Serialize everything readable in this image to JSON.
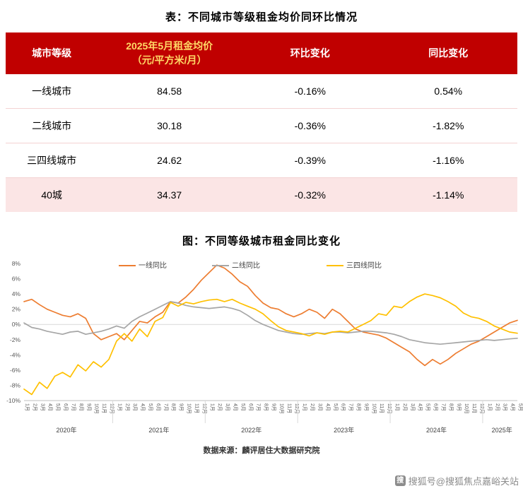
{
  "page": {
    "table_title": "表：不同城市等级租金均价同环比情况",
    "chart_title": "图：不同等级城市租金同比变化",
    "source": "数据来源：麟评居住大数据研究院",
    "watermark": "搜狐号@搜狐焦点嘉峪关站",
    "watermark_icon": "搜"
  },
  "colors": {
    "header_bg": "#C00000",
    "header_text": "#FFFFFF",
    "header_accent": "#FFD966",
    "highlight_row_bg": "#FBE5E5",
    "series_first_tier": "#ED7D31",
    "series_second_tier": "#A6A6A6",
    "series_lower_tier": "#FFC000"
  },
  "table": {
    "header_tier": "城市等级",
    "header_price_line1": "2025年5月租金均价",
    "header_price_line2": "（元/平方米/月）",
    "header_mom": "环比变化",
    "header_yoy": "同比变化",
    "rows": [
      {
        "tier": "一线城市",
        "price": "84.58",
        "mom": "-0.16%",
        "yoy": "0.54%"
      },
      {
        "tier": "二线城市",
        "price": "30.18",
        "mom": "-0.36%",
        "yoy": "-1.82%"
      },
      {
        "tier": "三四线城市",
        "price": "24.62",
        "mom": "-0.39%",
        "yoy": "-1.16%"
      },
      {
        "tier": "40城",
        "price": "34.37",
        "mom": "-0.32%",
        "yoy": "-1.14%"
      }
    ]
  },
  "chart_data": {
    "type": "line",
    "title": "图：不同等级城市租金同比变化",
    "ylim": [
      -10,
      8
    ],
    "ytick_step": 2,
    "grid": "zero-line-only",
    "legend_position": "top-center",
    "x_labels": [
      "1月",
      "2月",
      "3月",
      "4月",
      "5月",
      "6月",
      "7月",
      "8月",
      "9月",
      "10月",
      "11月",
      "12月",
      "1月",
      "2月",
      "3月",
      "4月",
      "5月",
      "6月",
      "7月",
      "8月",
      "9月",
      "10月",
      "11月",
      "12月",
      "1月",
      "2月",
      "3月",
      "4月",
      "5月",
      "6月",
      "7月",
      "8月",
      "9月",
      "10月",
      "11月",
      "12月",
      "1月",
      "2月",
      "3月",
      "4月",
      "5月",
      "6月",
      "7月",
      "8月",
      "9月",
      "10月",
      "11月",
      "12月",
      "1月",
      "2月",
      "3月",
      "4月",
      "5月",
      "6月",
      "7月",
      "8月",
      "9月",
      "10月",
      "11月",
      "12月",
      "1月",
      "2月",
      "3月",
      "4月",
      "5月"
    ],
    "year_separators": [
      11.5,
      23.5,
      35.5,
      47.5,
      59.5
    ],
    "year_labels": [
      {
        "label": "2020年",
        "center": 5.5
      },
      {
        "label": "2021年",
        "center": 17.5
      },
      {
        "label": "2022年",
        "center": 29.5
      },
      {
        "label": "2023年",
        "center": 41.5
      },
      {
        "label": "2024年",
        "center": 53.5
      },
      {
        "label": "2025年",
        "center": 62
      }
    ],
    "series": [
      {
        "name": "一线同比",
        "color": "#ED7D31",
        "values": [
          3.0,
          3.3,
          2.6,
          2.0,
          1.6,
          1.2,
          1.0,
          1.4,
          0.8,
          -1.2,
          -2.0,
          -1.6,
          -1.2,
          -2.0,
          -0.8,
          0.4,
          0.2,
          1.0,
          1.6,
          3.0,
          2.8,
          3.6,
          4.6,
          5.8,
          6.8,
          7.8,
          7.4,
          6.6,
          5.6,
          5.0,
          3.8,
          2.8,
          2.2,
          2.0,
          1.4,
          1.0,
          1.4,
          2.0,
          1.6,
          0.8,
          2.0,
          1.4,
          0.4,
          -0.6,
          -1.0,
          -1.2,
          -1.4,
          -1.8,
          -2.4,
          -3.0,
          -3.6,
          -4.6,
          -5.4,
          -4.6,
          -5.2,
          -4.6,
          -3.8,
          -3.2,
          -2.6,
          -2.2,
          -1.6,
          -1.0,
          -0.4,
          0.2,
          0.54
        ]
      },
      {
        "name": "二线同比",
        "color": "#A6A6A6",
        "values": [
          0.2,
          -0.4,
          -0.6,
          -0.9,
          -1.1,
          -1.3,
          -1.0,
          -0.9,
          -1.3,
          -1.1,
          -0.9,
          -0.6,
          -0.2,
          -0.5,
          0.4,
          1.0,
          1.5,
          2.0,
          2.5,
          3.0,
          2.8,
          2.5,
          2.3,
          2.2,
          2.1,
          2.2,
          2.3,
          2.1,
          1.8,
          1.2,
          0.5,
          0.0,
          -0.4,
          -0.8,
          -1.0,
          -1.2,
          -1.3,
          -1.2,
          -1.1,
          -1.2,
          -1.0,
          -1.0,
          -1.1,
          -1.0,
          -0.9,
          -0.9,
          -1.0,
          -1.1,
          -1.3,
          -1.6,
          -2.0,
          -2.2,
          -2.4,
          -2.5,
          -2.6,
          -2.5,
          -2.4,
          -2.3,
          -2.2,
          -2.1,
          -2.0,
          -2.1,
          -2.0,
          -1.9,
          -1.82
        ]
      },
      {
        "name": "三四线同比",
        "color": "#FFC000",
        "values": [
          -8.5,
          -9.2,
          -7.6,
          -8.4,
          -6.8,
          -6.3,
          -6.9,
          -5.3,
          -6.1,
          -4.9,
          -5.6,
          -4.6,
          -2.2,
          -1.2,
          -2.2,
          -0.6,
          -1.6,
          0.4,
          0.9,
          2.9,
          2.4,
          2.9,
          2.7,
          3.0,
          3.2,
          3.3,
          3.0,
          3.3,
          2.8,
          2.4,
          2.0,
          1.4,
          0.5,
          -0.3,
          -0.8,
          -1.0,
          -1.2,
          -1.5,
          -1.1,
          -1.3,
          -1.0,
          -0.9,
          -1.0,
          -0.5,
          0.0,
          0.5,
          1.4,
          1.2,
          2.4,
          2.2,
          3.0,
          3.6,
          4.0,
          3.8,
          3.5,
          3.0,
          2.4,
          1.5,
          1.0,
          0.8,
          0.4,
          -0.2,
          -0.6,
          -1.0,
          -1.16
        ]
      }
    ]
  }
}
